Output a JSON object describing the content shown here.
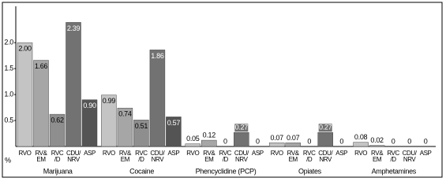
{
  "chart_data": {
    "type": "bar",
    "y_label": "%",
    "categories": [
      "RVO",
      "RV&\nEM",
      "RVC\n/D",
      "CDU/\nNRV",
      "ASP"
    ],
    "colors": [
      "#c4c4c4",
      "#a6a6a6",
      "#8e8e8e",
      "#727272",
      "#545454"
    ],
    "series": [
      {
        "name": "Marijuana",
        "values": [
          2.0,
          1.66,
          0.62,
          2.39,
          0.9
        ],
        "value_labels": [
          "2.00",
          "1.66",
          "0.62",
          "2.39",
          "0.90"
        ]
      },
      {
        "name": "Cocaine",
        "values": [
          0.99,
          0.74,
          0.51,
          1.86,
          0.57
        ],
        "value_labels": [
          "0.99",
          "0.74",
          "0.51",
          "1.86",
          "0.57"
        ]
      },
      {
        "name": "Phencyclidine (PCP)",
        "values": [
          0.05,
          0.12,
          0,
          0.27,
          0
        ],
        "value_labels": [
          "0.05",
          "0.12",
          "0",
          "0.27",
          "0"
        ]
      },
      {
        "name": "Opiates",
        "values": [
          0.07,
          0.07,
          0,
          0.27,
          0
        ],
        "value_labels": [
          "0.07",
          "0.07",
          "0",
          "0.27",
          "0"
        ]
      },
      {
        "name": "Amphetamines",
        "values": [
          0.08,
          0.02,
          0,
          0,
          0
        ],
        "value_labels": [
          "0.08",
          "0.02",
          "0",
          "0",
          "0"
        ]
      }
    ],
    "ylim": [
      0,
      2.7
    ],
    "yticks": [
      0.5,
      {
        "value": 1,
        "label": "1.0"
      },
      1.5,
      {
        "value": 2,
        "label": "2.0"
      }
    ]
  }
}
